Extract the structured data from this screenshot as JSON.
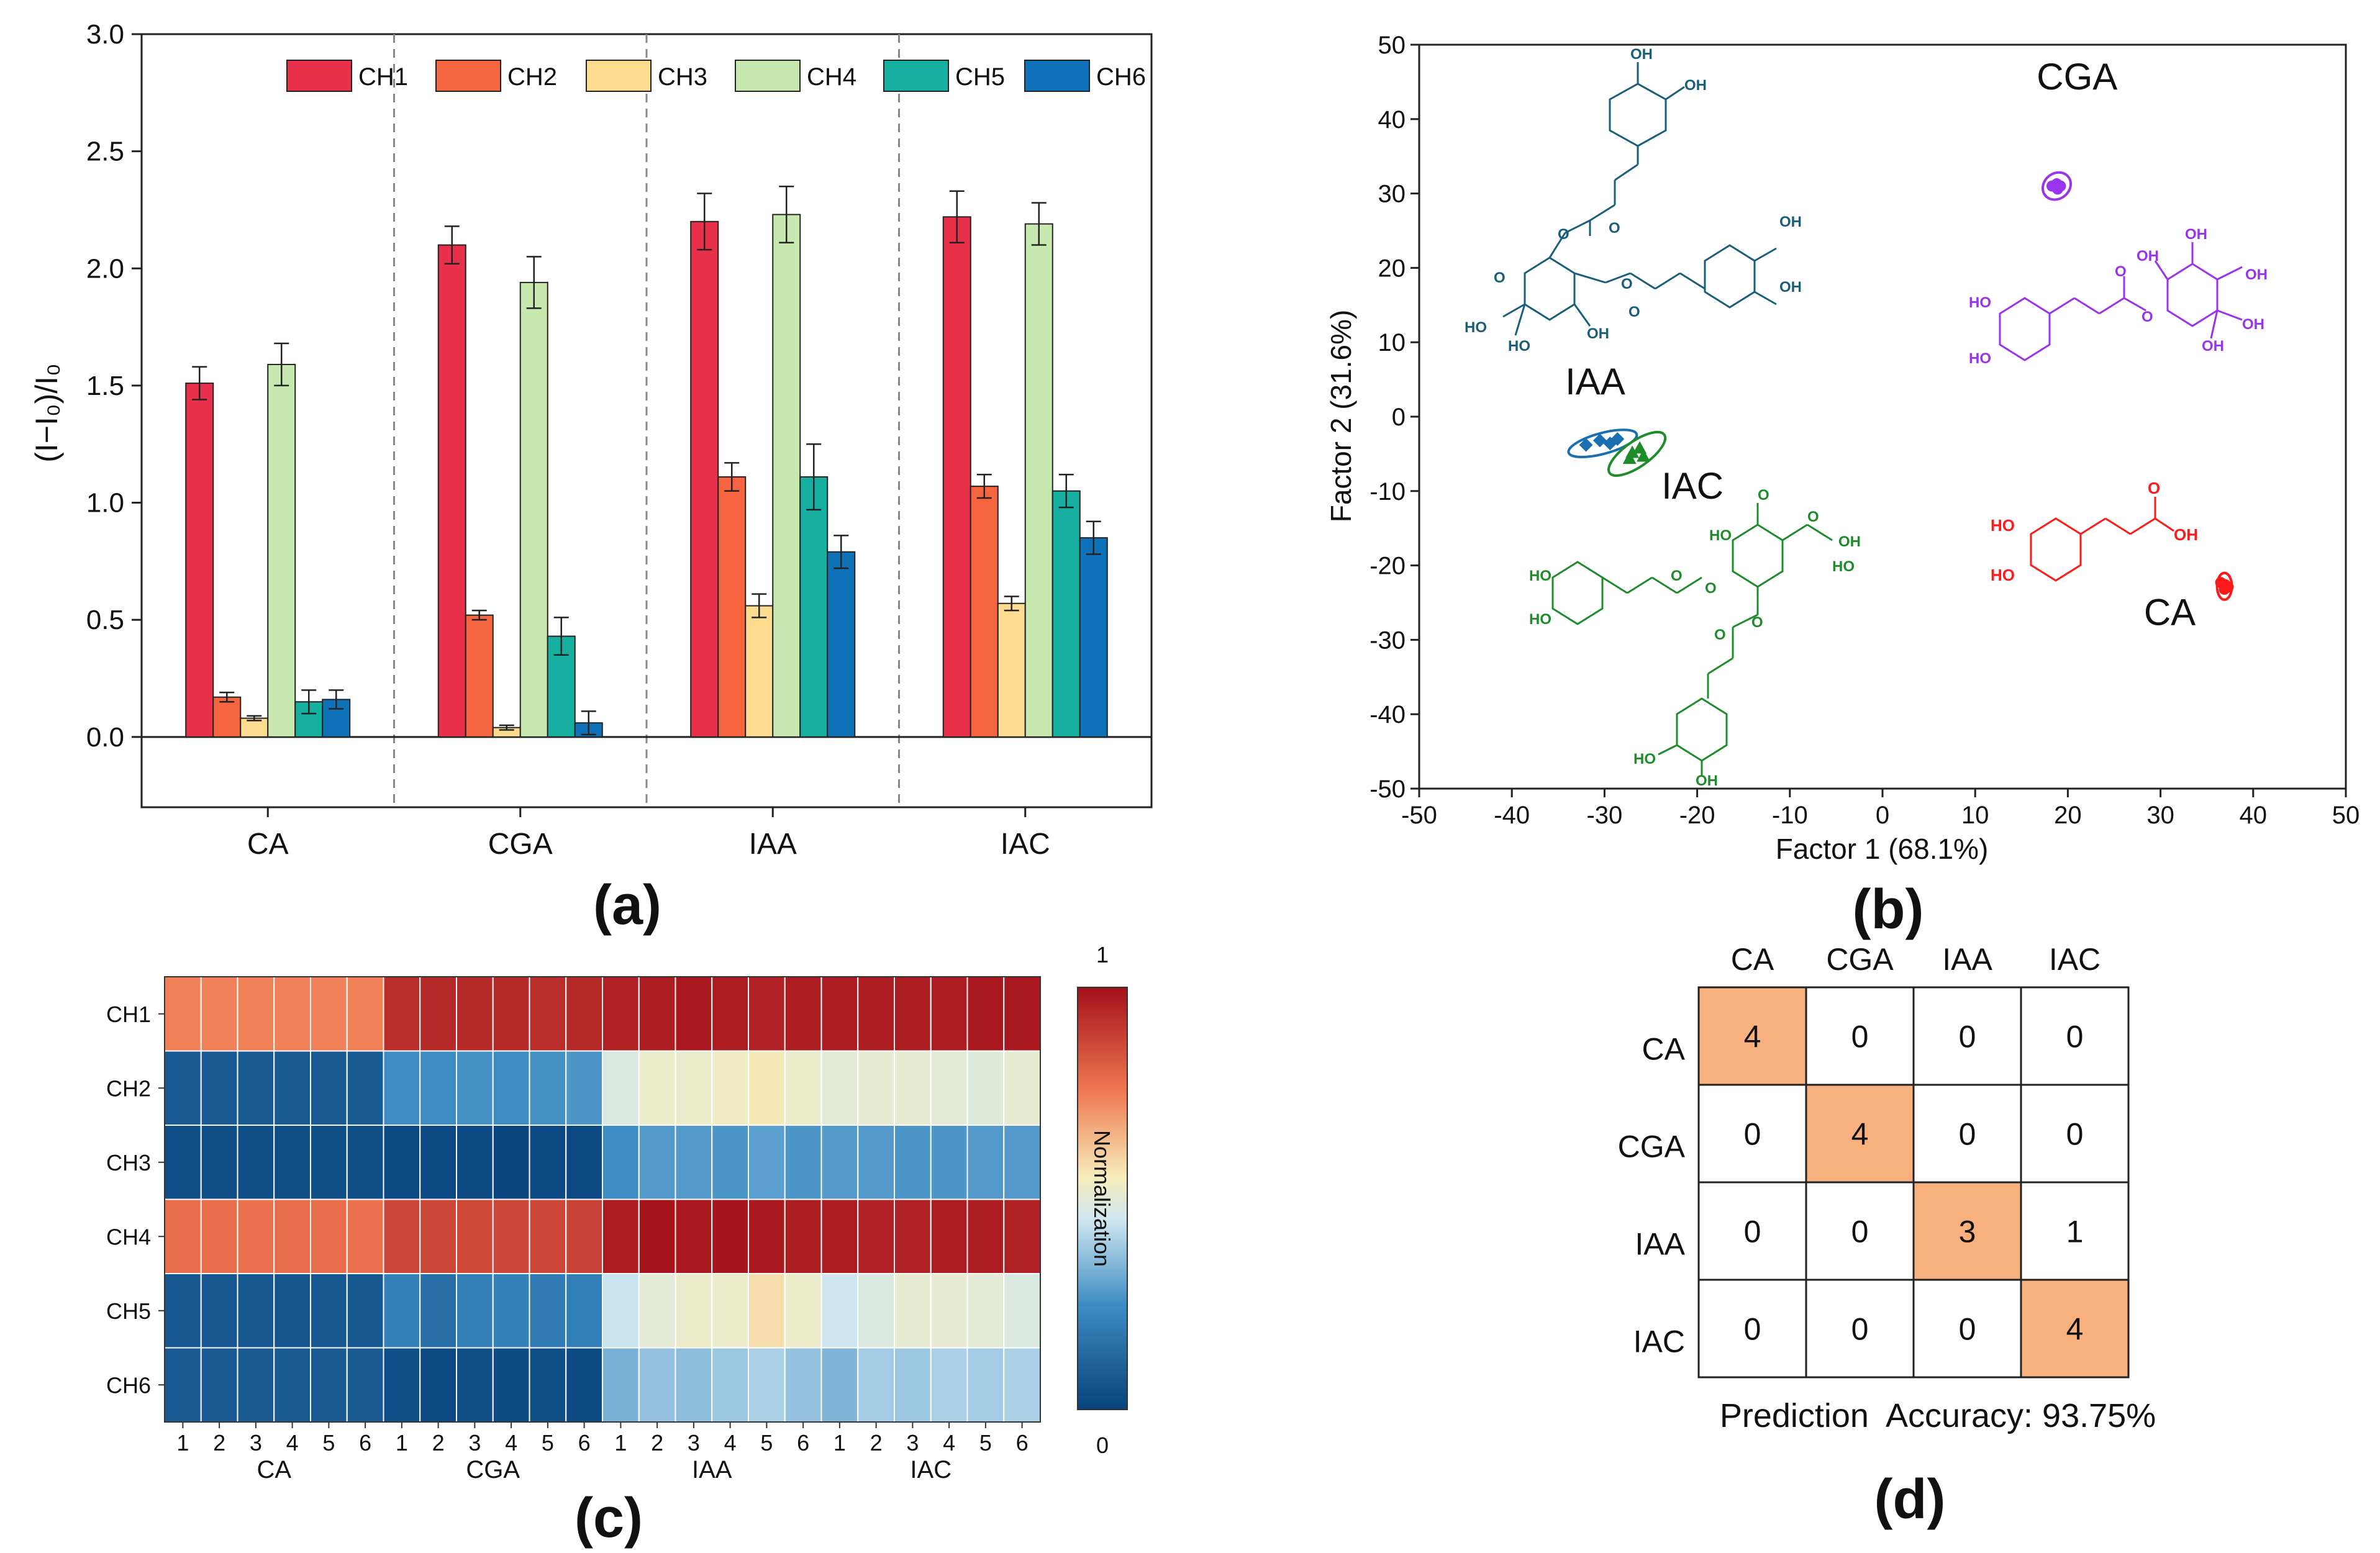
{
  "panel_labels": {
    "a": "(a)",
    "b": "(b)",
    "c": "(c)",
    "d": "(d)"
  },
  "colors": {
    "CH1": "#e8304a",
    "CH2": "#f5653f",
    "CH3": "#fddc8f",
    "CH4": "#c7e9b0",
    "CH5": "#17b0a0",
    "CH6": "#0f72b8",
    "CA": "#ff1a1a",
    "CGA": "#9933ee",
    "IAA": "#1a6fb0",
    "IAC": "#1e8c2a",
    "cm_highlight": "#f8b07e"
  },
  "chart_data": [
    {
      "type": "bar",
      "panel": "a",
      "ylabel": "(I−I₀)/I₀",
      "xlabel": "",
      "ylim": [
        -0.3,
        3.0
      ],
      "yticks": [
        "3.0",
        "2.5",
        "2.0",
        "1.5",
        "1.0",
        "0.5",
        "0.0"
      ],
      "categories": [
        "CA",
        "CGA",
        "IAA",
        "IAC"
      ],
      "series": [
        {
          "name": "CH1",
          "values": [
            1.51,
            2.1,
            2.2,
            2.22
          ],
          "errors": [
            0.07,
            0.08,
            0.12,
            0.11
          ]
        },
        {
          "name": "CH2",
          "values": [
            0.17,
            0.52,
            1.11,
            1.07
          ],
          "errors": [
            0.02,
            0.02,
            0.06,
            0.05
          ]
        },
        {
          "name": "CH3",
          "values": [
            0.08,
            0.04,
            0.56,
            0.57
          ],
          "errors": [
            0.01,
            0.01,
            0.05,
            0.03
          ]
        },
        {
          "name": "CH4",
          "values": [
            1.59,
            1.94,
            2.23,
            2.19
          ],
          "errors": [
            0.09,
            0.11,
            0.12,
            0.09
          ]
        },
        {
          "name": "CH5",
          "values": [
            0.15,
            0.43,
            1.11,
            1.05
          ],
          "errors": [
            0.05,
            0.08,
            0.14,
            0.07
          ]
        },
        {
          "name": "CH6",
          "values": [
            0.16,
            0.06,
            0.79,
            0.85
          ],
          "errors": [
            0.04,
            0.05,
            0.07,
            0.07
          ]
        }
      ],
      "legend": "top-right"
    },
    {
      "type": "scatter",
      "panel": "b",
      "xlabel": "Factor 1 (68.1%)",
      "ylabel": "Factor 2 (31.6%)",
      "xlim": [
        -50,
        50
      ],
      "ylim": [
        -50,
        50
      ],
      "xticks": [
        "-50",
        "-40",
        "-30",
        "-20",
        "-10",
        "0",
        "10",
        "20",
        "30",
        "40",
        "50"
      ],
      "yticks": [
        "50",
        "40",
        "30",
        "20",
        "10",
        "0",
        "-10",
        "-20",
        "-30",
        "-40",
        "-50"
      ],
      "groups": [
        {
          "name": "CGA",
          "label": "CGA",
          "points": [
            [
              18.3,
              31.0
            ],
            [
              18.8,
              31.3
            ],
            [
              19.2,
              31.0
            ],
            [
              18.9,
              30.6
            ]
          ],
          "ellipse": {
            "cx": 18.8,
            "cy": 31.0,
            "rx": 1.6,
            "ry": 1.7,
            "angle": -40
          }
        },
        {
          "name": "IAA",
          "label": "IAA",
          "points": [
            [
              -32.0,
              -3.8
            ],
            [
              -30.5,
              -3.2
            ],
            [
              -29.4,
              -3.6
            ],
            [
              -28.6,
              -3.0
            ]
          ],
          "ellipse": {
            "cx": -30.2,
            "cy": -3.6,
            "rx": 3.8,
            "ry": 1.4,
            "angle": -15
          }
        },
        {
          "name": "IAC",
          "label": "IAC",
          "points": [
            [
              -27.0,
              -4.8
            ],
            [
              -26.2,
              -4.2
            ],
            [
              -25.8,
              -5.3
            ],
            [
              -27.3,
              -5.6
            ]
          ],
          "ellipse": {
            "cx": -26.5,
            "cy": -5.0,
            "rx": 3.6,
            "ry": 1.7,
            "angle": -35
          }
        },
        {
          "name": "CA",
          "label": "CA",
          "points": [
            [
              36.5,
              -22.3
            ],
            [
              37.0,
              -22.6
            ],
            [
              36.9,
              -23.2
            ],
            [
              37.3,
              -22.9
            ]
          ],
          "ellipse": {
            "cx": 36.9,
            "cy": -22.8,
            "rx": 0.8,
            "ry": 1.8,
            "angle": 0
          }
        }
      ]
    },
    {
      "type": "heatmap",
      "panel": "c",
      "rows": [
        "CH1",
        "CH2",
        "CH3",
        "CH4",
        "CH5",
        "CH6"
      ],
      "column_groups": [
        "CA",
        "CGA",
        "IAA",
        "IAC"
      ],
      "column_labels": [
        "1",
        "2",
        "3",
        "4",
        "5",
        "6"
      ],
      "colorbar_label": "Normalization",
      "colorbar_max": "1",
      "colorbar_min": "0",
      "values": [
        [
          0.74,
          0.74,
          0.74,
          0.74,
          0.74,
          0.74,
          0.93,
          0.94,
          0.94,
          0.94,
          0.93,
          0.94,
          0.96,
          0.97,
          0.98,
          0.97,
          0.96,
          0.97,
          0.97,
          0.97,
          0.97,
          0.97,
          0.98,
          0.98
        ],
        [
          0.08,
          0.08,
          0.08,
          0.08,
          0.08,
          0.08,
          0.25,
          0.25,
          0.26,
          0.25,
          0.26,
          0.27,
          0.48,
          0.52,
          0.52,
          0.53,
          0.56,
          0.52,
          0.5,
          0.51,
          0.51,
          0.5,
          0.49,
          0.51
        ],
        [
          0.04,
          0.04,
          0.04,
          0.04,
          0.04,
          0.04,
          0.02,
          0.02,
          0.02,
          0.01,
          0.02,
          0.02,
          0.25,
          0.28,
          0.28,
          0.27,
          0.29,
          0.27,
          0.28,
          0.28,
          0.27,
          0.27,
          0.28,
          0.28
        ],
        [
          0.78,
          0.78,
          0.77,
          0.78,
          0.78,
          0.77,
          0.87,
          0.87,
          0.86,
          0.87,
          0.87,
          0.88,
          0.97,
          0.99,
          0.98,
          0.99,
          0.98,
          0.97,
          0.97,
          0.96,
          0.96,
          0.97,
          0.97,
          0.96
        ],
        [
          0.07,
          0.07,
          0.07,
          0.06,
          0.07,
          0.07,
          0.21,
          0.15,
          0.2,
          0.21,
          0.19,
          0.2,
          0.44,
          0.5,
          0.52,
          0.52,
          0.58,
          0.52,
          0.45,
          0.48,
          0.51,
          0.51,
          0.5,
          0.48
        ],
        [
          0.08,
          0.08,
          0.08,
          0.08,
          0.08,
          0.08,
          0.04,
          0.02,
          0.04,
          0.03,
          0.04,
          0.03,
          0.33,
          0.37,
          0.36,
          0.38,
          0.4,
          0.37,
          0.34,
          0.39,
          0.38,
          0.4,
          0.39,
          0.4
        ]
      ]
    },
    {
      "type": "table",
      "panel": "d",
      "columns": [
        "CA",
        "CGA",
        "IAA",
        "IAC"
      ],
      "rows": [
        "CA",
        "CGA",
        "IAA",
        "IAC"
      ],
      "values": [
        [
          4,
          0,
          0,
          0
        ],
        [
          0,
          4,
          0,
          0
        ],
        [
          0,
          0,
          3,
          1
        ],
        [
          0,
          0,
          0,
          4
        ]
      ],
      "caption": "Prediction  Accuracy: 93.75%"
    }
  ],
  "structures": {
    "CGA": {
      "labels": [
        "OH",
        "OH",
        "HO",
        "HO",
        "OH",
        "OH",
        "O",
        "O",
        "OH"
      ]
    },
    "IAA": {
      "labels": [
        "OH",
        "OH",
        "OH",
        "OH",
        "O",
        "O",
        "O",
        "O",
        "HO",
        "HO",
        "O",
        "OH"
      ]
    },
    "IAC": {
      "labels": [
        "HO",
        "OH",
        "HO",
        "HO",
        "O",
        "O",
        "HO",
        "O",
        "O",
        "O",
        "O",
        "HO",
        "OH"
      ]
    },
    "CA": {
      "labels": [
        "HO",
        "HO",
        "O",
        "OH"
      ]
    }
  }
}
